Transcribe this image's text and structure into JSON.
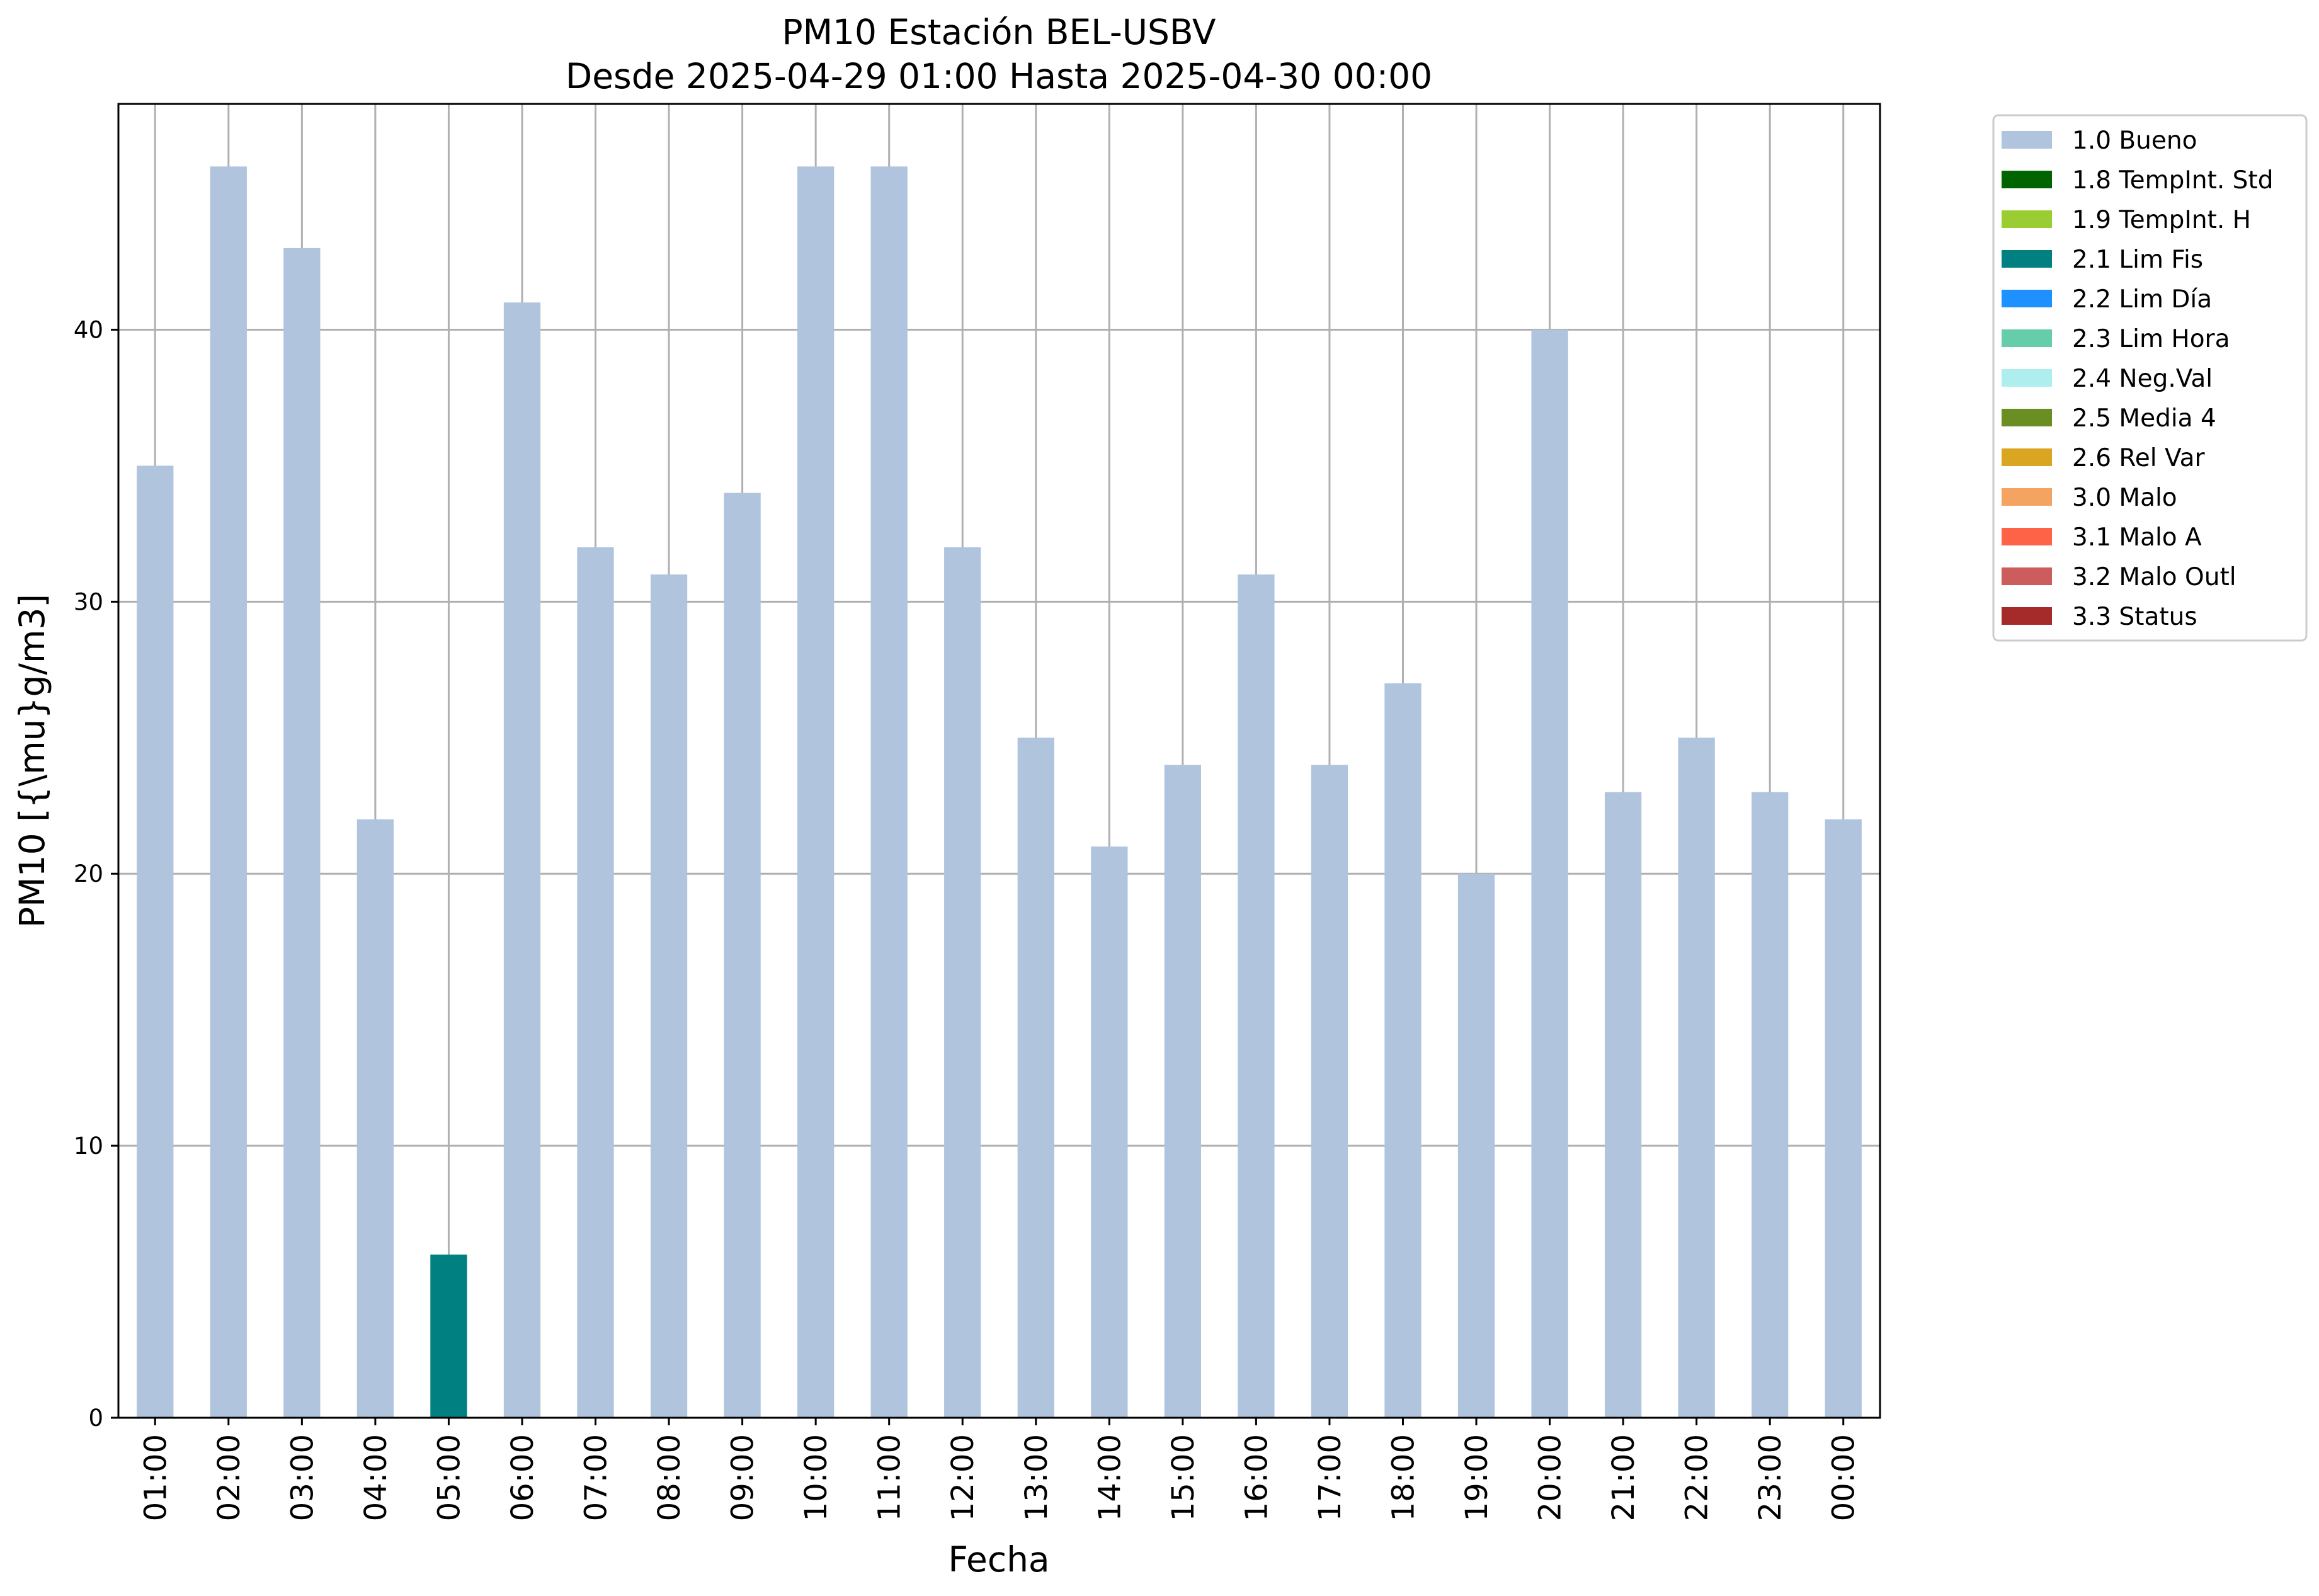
{
  "chart_data": {
    "type": "bar",
    "title": "PM10 Estación BEL-USBV",
    "subtitle": "Desde 2025-04-29 01:00 Hasta 2025-04-30 00:00",
    "xlabel": "Fecha",
    "ylabel": "PM10 [{\\mu}g/m3]",
    "ylim": [
      0,
      48.3
    ],
    "yticks": [
      0,
      10,
      20,
      30,
      40
    ],
    "grid": true,
    "legend_position": "outside-top-right",
    "categories": [
      "01:00",
      "02:00",
      "03:00",
      "04:00",
      "05:00",
      "06:00",
      "07:00",
      "08:00",
      "09:00",
      "10:00",
      "11:00",
      "12:00",
      "13:00",
      "14:00",
      "15:00",
      "16:00",
      "17:00",
      "18:00",
      "19:00",
      "20:00",
      "21:00",
      "22:00",
      "23:00",
      "00:00"
    ],
    "values": [
      35,
      46,
      43,
      22,
      6,
      41,
      32,
      31,
      34,
      46,
      46,
      32,
      25,
      21,
      24,
      31,
      24,
      27,
      20,
      40,
      23,
      25,
      23,
      22
    ],
    "bar_flags": [
      "1.0 Bueno",
      "1.0 Bueno",
      "1.0 Bueno",
      "1.0 Bueno",
      "2.1 Lim Fis",
      "1.0 Bueno",
      "1.0 Bueno",
      "1.0 Bueno",
      "1.0 Bueno",
      "1.0 Bueno",
      "1.0 Bueno",
      "1.0 Bueno",
      "1.0 Bueno",
      "1.0 Bueno",
      "1.0 Bueno",
      "1.0 Bueno",
      "1.0 Bueno",
      "1.0 Bueno",
      "1.0 Bueno",
      "1.0 Bueno",
      "1.0 Bueno",
      "1.0 Bueno",
      "1.0 Bueno",
      "1.0 Bueno"
    ],
    "legend": [
      {
        "name": "1.0 Bueno",
        "color": "#b0c4de"
      },
      {
        "name": "1.8 TempInt. Std",
        "color": "#006400"
      },
      {
        "name": "1.9 TempInt. H",
        "color": "#9acd32"
      },
      {
        "name": "2.1 Lim Fis",
        "color": "#008080"
      },
      {
        "name": "2.2 Lim Día",
        "color": "#1e90ff"
      },
      {
        "name": "2.3 Lim Hora",
        "color": "#66cdaa"
      },
      {
        "name": "2.4 Neg.Val",
        "color": "#afeeee"
      },
      {
        "name": "2.5 Media 4",
        "color": "#6b8e23"
      },
      {
        "name": "2.6 Rel Var",
        "color": "#daa520"
      },
      {
        "name": "3.0 Malo",
        "color": "#f4a460"
      },
      {
        "name": "3.1 Malo A",
        "color": "#ff6347"
      },
      {
        "name": "3.2 Malo Outl",
        "color": "#cd5c5c"
      },
      {
        "name": "3.3 Status",
        "color": "#a52a2a"
      }
    ]
  }
}
